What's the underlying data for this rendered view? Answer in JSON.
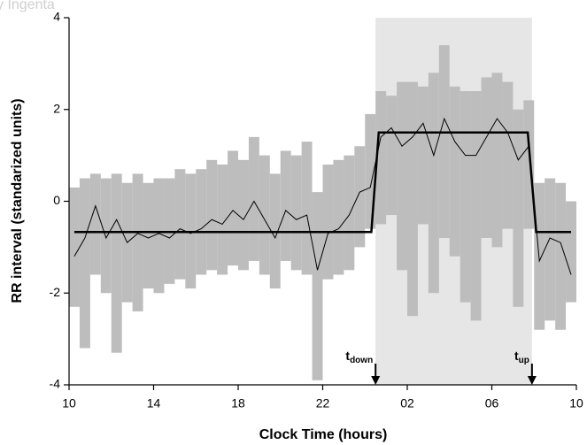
{
  "chart_data": {
    "type": "line",
    "watermark": "y Ingenta",
    "xlabel": "Clock Time (hours)",
    "ylabel": "RR interval (standarized units)",
    "xlim": [
      10,
      34
    ],
    "xticks": [
      10,
      14,
      18,
      22,
      {
        "value": 26,
        "label": "02"
      },
      {
        "value": 30,
        "label": "06"
      },
      {
        "value": 34,
        "label": "10"
      }
    ],
    "ylim": [
      -4,
      4
    ],
    "yticks": [
      -4,
      -2,
      0,
      2,
      4
    ],
    "shaded": [
      24.5,
      31.9
    ],
    "shade_color": "#e6e6e6",
    "x": [
      10.25,
      10.75,
      11.25,
      11.75,
      12.25,
      12.75,
      13.25,
      13.75,
      14.25,
      14.75,
      15.25,
      15.75,
      16.25,
      16.75,
      17.25,
      17.75,
      18.25,
      18.75,
      19.25,
      19.75,
      20.25,
      20.75,
      21.25,
      21.75,
      22.25,
      22.75,
      23.25,
      23.75,
      24.25,
      24.75,
      25.25,
      25.75,
      26.25,
      26.75,
      27.25,
      27.75,
      28.25,
      28.75,
      29.25,
      29.75,
      30.25,
      30.75,
      31.25,
      31.75,
      32.25,
      32.75,
      33.25,
      33.75
    ],
    "series": [
      {
        "kind": "range",
        "color": "#bdbdbd",
        "low": [
          -2.3,
          -3.2,
          -1.6,
          -2.0,
          -3.3,
          -2.2,
          -2.4,
          -1.9,
          -2.0,
          -1.8,
          -1.7,
          -1.9,
          -1.6,
          -1.5,
          -1.6,
          -1.4,
          -1.5,
          -1.3,
          -1.6,
          -1.9,
          -1.3,
          -1.5,
          -1.6,
          -3.9,
          -1.7,
          -1.6,
          -1.5,
          -1.0,
          -0.6,
          -0.5,
          -0.3,
          -1.5,
          -2.5,
          -0.5,
          -2.0,
          -0.8,
          -1.2,
          -2.2,
          -2.6,
          -0.8,
          -1.0,
          -0.6,
          -2.3,
          -0.6,
          -2.8,
          -2.6,
          -2.8,
          -2.2
        ],
        "high": [
          0.3,
          0.5,
          0.6,
          0.5,
          0.6,
          0.4,
          0.6,
          0.4,
          0.5,
          0.5,
          0.7,
          0.6,
          0.7,
          0.9,
          0.8,
          1.1,
          0.9,
          1.4,
          1.0,
          0.6,
          1.1,
          1.0,
          1.3,
          0.2,
          0.8,
          0.9,
          1.0,
          1.2,
          1.9,
          2.4,
          2.3,
          2.6,
          2.6,
          2.5,
          2.8,
          3.4,
          2.5,
          2.4,
          2.4,
          2.7,
          2.8,
          2.6,
          2.0,
          2.2,
          0.4,
          0.5,
          0.4,
          0.0
        ]
      },
      {
        "kind": "line",
        "color": "#000000",
        "width": 1,
        "values": [
          -1.2,
          -0.8,
          -0.1,
          -0.8,
          -0.4,
          -0.9,
          -0.7,
          -0.8,
          -0.7,
          -0.8,
          -0.6,
          -0.7,
          -0.6,
          -0.4,
          -0.5,
          -0.2,
          -0.4,
          0.0,
          -0.4,
          -0.8,
          -0.2,
          -0.4,
          -0.3,
          -1.5,
          -0.7,
          -0.6,
          -0.3,
          0.2,
          0.3,
          1.4,
          1.6,
          1.2,
          1.4,
          1.7,
          1.0,
          1.8,
          1.3,
          1.0,
          1.0,
          1.4,
          1.8,
          1.5,
          0.9,
          1.2,
          -1.3,
          -0.8,
          -0.9,
          -1.6
        ]
      },
      {
        "kind": "line",
        "color": "#000000",
        "width": 2.5,
        "x": [
          10.25,
          24.3,
          24.65,
          31.7,
          32.1,
          33.75
        ],
        "values": [
          -0.67,
          -0.67,
          1.5,
          1.5,
          -0.67,
          -0.67
        ]
      }
    ],
    "annotations": [
      {
        "label": "t",
        "subscript": "down",
        "x": 24.5
      },
      {
        "label": "t",
        "subscript": "up",
        "x": 31.9
      }
    ]
  }
}
